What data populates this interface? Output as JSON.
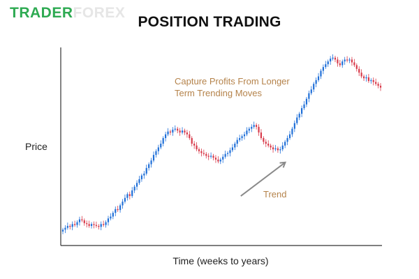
{
  "brand": {
    "part1": "TRADER",
    "part2": "FOREX"
  },
  "chart_data": {
    "type": "candlestick",
    "title": "POSITION TRADING",
    "xlabel": "Time (weeks to years)",
    "ylabel": "Price",
    "annotation_lines": [
      "Capture Profits From Longer",
      "Term Trending Moves"
    ],
    "trend_label": "Trend",
    "colors": {
      "up": "#1f6fd8",
      "down": "#d83a4a",
      "axis": "#333333",
      "arrow": "#8a8a8a",
      "annotation": "#b5834b"
    },
    "ylim": [
      0,
      100
    ],
    "closes": [
      4,
      5,
      6,
      5.5,
      7,
      6.5,
      8,
      9.5,
      9,
      7.5,
      7,
      6,
      7,
      6.5,
      6,
      5.5,
      7,
      6.5,
      8,
      10,
      11,
      13,
      15,
      14.5,
      17,
      19,
      21,
      23,
      22,
      25,
      27,
      29,
      31,
      33,
      34,
      37,
      39,
      41,
      44,
      46,
      48,
      50,
      53,
      55,
      56.5,
      56,
      57.5,
      58,
      57,
      56,
      57,
      56,
      55,
      53,
      50,
      49,
      47,
      46,
      45,
      44.5,
      43.5,
      43,
      43.5,
      42.5,
      41.5,
      40.5,
      41.5,
      43,
      44.5,
      45,
      46.5,
      48,
      50,
      52,
      53,
      54,
      55,
      57,
      58,
      59,
      60,
      59,
      56,
      53,
      51,
      50,
      49,
      48,
      47,
      47.5,
      46.5,
      47,
      49,
      51,
      53,
      55,
      58,
      61,
      64,
      66,
      69,
      71,
      74,
      77,
      79,
      82,
      84,
      86,
      89,
      91,
      92.5,
      94,
      95.5,
      96,
      95,
      93,
      92,
      94,
      95,
      94.5,
      95,
      93.5,
      92,
      90,
      88,
      86,
      85,
      85.5,
      83.5,
      84,
      83,
      82,
      81,
      80
    ],
    "trend_arrow": {
      "from": [
        0.56,
        0.22
      ],
      "to": [
        0.7,
        0.4
      ]
    }
  }
}
